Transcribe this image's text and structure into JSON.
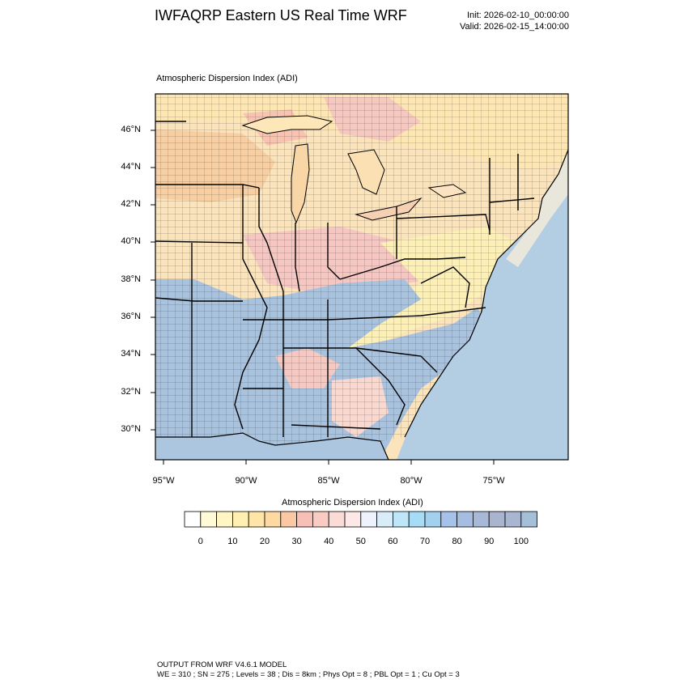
{
  "header": {
    "title": "IWFAQRP Eastern US Real Time WRF",
    "init": "Init: 2026-02-10_00:00:00",
    "valid": "Valid: 2026-02-15_14:00:00"
  },
  "map": {
    "title": "Atmospheric Dispersion Index   (ADI)",
    "lat_labels": [
      "46°N",
      "44°N",
      "42°N",
      "40°N",
      "38°N",
      "36°N",
      "34°N",
      "32°N",
      "30°N"
    ],
    "lon_labels": [
      "95°W",
      "90°W",
      "85°W",
      "80°W",
      "75°W"
    ],
    "colors": {
      "land_low": "#fbe0b6",
      "land_mid": "#f7c79a",
      "land_pink": "#f4c3c0",
      "yellow": "#fdf2b5",
      "blue": "#a9c6e0",
      "water": "#b2cce3",
      "lake": "#f6d6a8"
    }
  },
  "colorbar": {
    "title": "Atmospheric Dispersion Index  (ADI)",
    "tick_labels": [
      "0",
      "10",
      "20",
      "30",
      "40",
      "50",
      "60",
      "70",
      "80",
      "90",
      "100"
    ],
    "colors": [
      "#ffffff",
      "#fffbd7",
      "#fff6c4",
      "#fff0b1",
      "#ffe6a8",
      "#fed9a0",
      "#fcc7a3",
      "#f8bfb6",
      "#f9cbc2",
      "#fadbd6",
      "#fce9e7",
      "#eef2fc",
      "#d8edf8",
      "#bfe6f8",
      "#a6dcf5",
      "#a2d1f0",
      "#a6c2ea",
      "#a6bde2",
      "#a8b9d8",
      "#a9b5cf",
      "#a9b6d2",
      "#a5bfd8"
    ]
  },
  "footer": {
    "line1": "OUTPUT FROM WRF V4.6.1 MODEL",
    "line2": "WE = 310 ; SN = 275 ; Levels = 38 ; Dis = 8km ; Phys Opt = 8 ; PBL Opt = 1 ; Cu Opt = 3"
  }
}
